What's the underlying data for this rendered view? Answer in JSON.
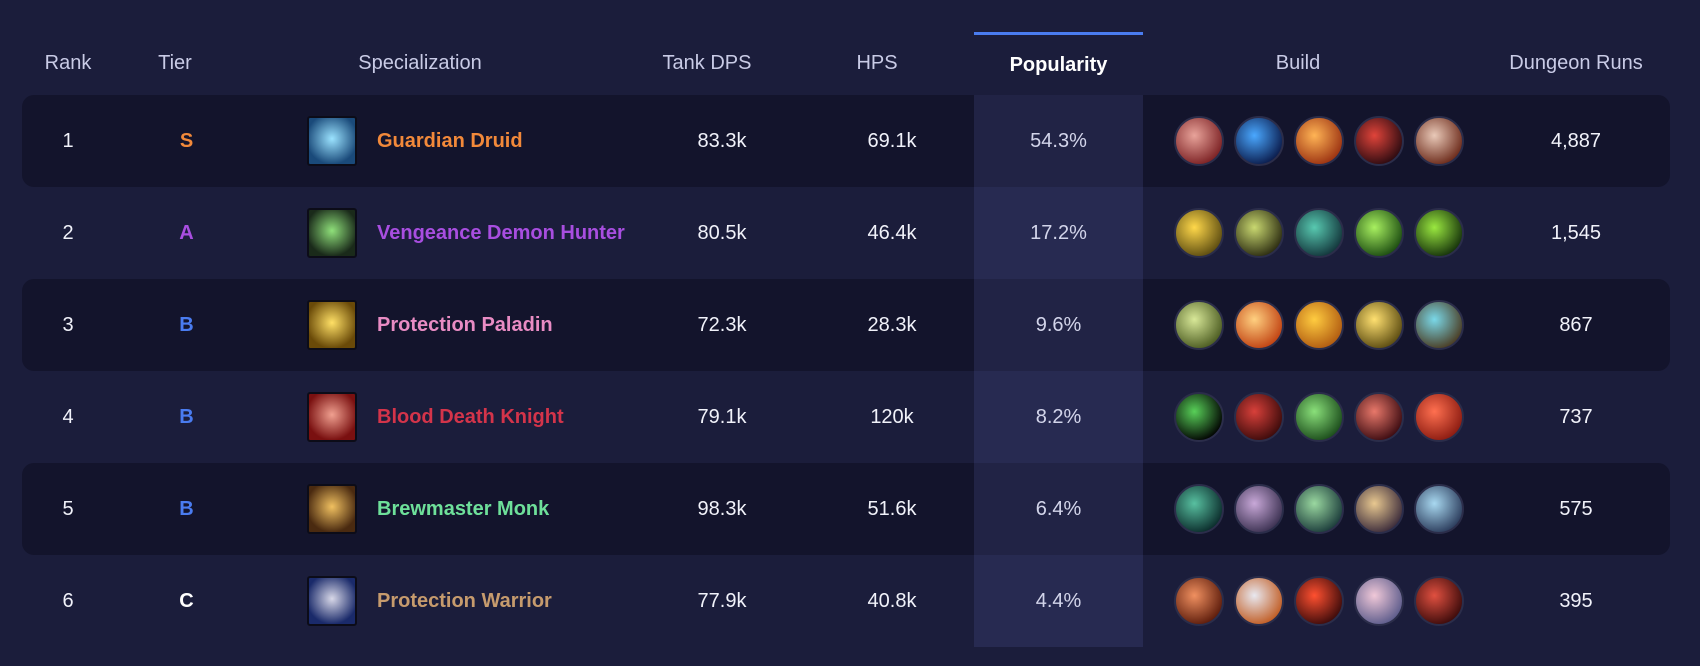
{
  "headers": {
    "rank": "Rank",
    "tier": "Tier",
    "specialization": "Specialization",
    "tank_dps": "Tank DPS",
    "hps": "HPS",
    "popularity": "Popularity",
    "build": "Build",
    "dungeon_runs": "Dungeon Runs"
  },
  "rows": [
    {
      "rank": "1",
      "tier": "S",
      "tier_color": "#f2893a",
      "spec": "Guardian Druid",
      "spec_color": "#f2893a",
      "spec_icon": "guardian-druid-icon",
      "spec_icon_colors": [
        "#9be3ff",
        "#1a4a7a"
      ],
      "tank_dps": "83.3k",
      "hps": "69.1k",
      "popularity": "54.3%",
      "runs": "4,887",
      "talents": [
        {
          "icon": "talent-bloody-claws-icon",
          "colors": [
            "#e8a39a",
            "#7a1f22"
          ]
        },
        {
          "icon": "talent-blue-swirl-icon",
          "colors": [
            "#4aa8ff",
            "#0a1a4a"
          ]
        },
        {
          "icon": "talent-fire-bear-icon",
          "colors": [
            "#ffb455",
            "#9a3010"
          ]
        },
        {
          "icon": "talent-red-beast-icon",
          "colors": [
            "#e0443a",
            "#2a0a10"
          ]
        },
        {
          "icon": "talent-claw-icon",
          "colors": [
            "#e9c9b8",
            "#6a2818"
          ]
        }
      ]
    },
    {
      "rank": "2",
      "tier": "A",
      "tier_color": "#a84ee0",
      "spec": "Vengeance Demon Hunter",
      "spec_color": "#a84ee0",
      "spec_icon": "vengeance-demon-hunter-icon",
      "spec_icon_colors": [
        "#8fe07a",
        "#1a2a1a"
      ],
      "tank_dps": "80.5k",
      "hps": "46.4k",
      "popularity": "17.2%",
      "runs": "1,545",
      "talents": [
        {
          "icon": "talent-yellow-glyph-icon",
          "colors": [
            "#ffd84a",
            "#5a4a10"
          ]
        },
        {
          "icon": "talent-demon-face-icon",
          "colors": [
            "#c9d870",
            "#2a2a10"
          ]
        },
        {
          "icon": "talent-teal-spirit-icon",
          "colors": [
            "#58c9b0",
            "#12343a"
          ]
        },
        {
          "icon": "talent-green-sigil-icon",
          "colors": [
            "#a8f060",
            "#1a4a10"
          ]
        },
        {
          "icon": "talent-fel-demon-icon",
          "colors": [
            "#9ae840",
            "#14300a"
          ]
        }
      ]
    },
    {
      "rank": "3",
      "tier": "B",
      "tier_color": "#4a7cf0",
      "spec": "Protection Paladin",
      "spec_color": "#e98cc4",
      "spec_icon": "protection-paladin-icon",
      "spec_icon_colors": [
        "#ffe066",
        "#6a4a08"
      ],
      "tank_dps": "72.3k",
      "hps": "28.3k",
      "popularity": "9.6%",
      "runs": "867",
      "talents": [
        {
          "icon": "talent-lion-face-icon",
          "colors": [
            "#d8e898",
            "#4a5a20"
          ]
        },
        {
          "icon": "talent-holy-flame-icon",
          "colors": [
            "#ffd080",
            "#c04010"
          ]
        },
        {
          "icon": "talent-holy-light-icon",
          "colors": [
            "#ffcc40",
            "#b05a10"
          ]
        },
        {
          "icon": "talent-golden-helm-icon",
          "colors": [
            "#ffe070",
            "#5a4a10"
          ]
        },
        {
          "icon": "talent-arcane-shield-icon",
          "colors": [
            "#7ad8e8",
            "#4a3a20"
          ]
        }
      ]
    },
    {
      "rank": "4",
      "tier": "B",
      "tier_color": "#4a7cf0",
      "spec": "Blood Death Knight",
      "spec_color": "#d4344a",
      "spec_icon": "blood-death-knight-icon",
      "spec_icon_colors": [
        "#f0a090",
        "#7a1010"
      ],
      "tank_dps": "79.1k",
      "hps": "120k",
      "popularity": "8.2%",
      "runs": "737",
      "talents": [
        {
          "icon": "talent-void-portal-icon",
          "colors": [
            "#58d058",
            "#000000"
          ]
        },
        {
          "icon": "talent-blood-swirl-icon",
          "colors": [
            "#d8403a",
            "#3a0a0a"
          ]
        },
        {
          "icon": "talent-green-skull-icon",
          "colors": [
            "#8ae07a",
            "#1a4a1a"
          ]
        },
        {
          "icon": "talent-blood-blade-icon",
          "colors": [
            "#e8786a",
            "#3a0a10"
          ]
        },
        {
          "icon": "talent-heart-icon",
          "colors": [
            "#ff7050",
            "#8a1a10"
          ]
        }
      ]
    },
    {
      "rank": "5",
      "tier": "B",
      "tier_color": "#4a7cf0",
      "spec": "Brewmaster Monk",
      "spec_color": "#6ee09a",
      "spec_icon": "brewmaster-monk-icon",
      "spec_icon_colors": [
        "#f0c060",
        "#4a2a10"
      ],
      "tank_dps": "98.3k",
      "hps": "51.6k",
      "popularity": "6.4%",
      "runs": "575",
      "talents": [
        {
          "icon": "talent-jade-swirl-icon",
          "colors": [
            "#58c0a0",
            "#0a2a2a"
          ]
        },
        {
          "icon": "talent-staff-strike-icon",
          "colors": [
            "#c8a8d8",
            "#3a3050"
          ]
        },
        {
          "icon": "talent-jade-fist-icon",
          "colors": [
            "#9ad8a0",
            "#1a3a3a"
          ]
        },
        {
          "icon": "talent-keg-icon",
          "colors": [
            "#e8c890",
            "#3a2a3a"
          ]
        },
        {
          "icon": "talent-storm-icon",
          "colors": [
            "#a8d8f0",
            "#2a3a5a"
          ]
        }
      ]
    },
    {
      "rank": "6",
      "tier": "C",
      "tier_color": "#ffffff",
      "spec": "Protection Warrior",
      "spec_color": "#c69b6d",
      "spec_icon": "protection-warrior-icon",
      "spec_icon_colors": [
        "#d8d8e8",
        "#1a2a6a"
      ],
      "tank_dps": "77.9k",
      "hps": "40.8k",
      "popularity": "4.4%",
      "runs": "395",
      "talents": [
        {
          "icon": "talent-enraged-warrior-icon",
          "colors": [
            "#f09060",
            "#5a1a0a"
          ]
        },
        {
          "icon": "talent-shield-icon",
          "colors": [
            "#e8e8f0",
            "#c05a20"
          ]
        },
        {
          "icon": "talent-red-shout-icon",
          "colors": [
            "#ff5030",
            "#3a0a0a"
          ]
        },
        {
          "icon": "talent-scream-icon",
          "colors": [
            "#f0c8d8",
            "#5a5a8a"
          ]
        },
        {
          "icon": "talent-avatar-icon",
          "colors": [
            "#e05040",
            "#3a0a0a"
          ]
        }
      ]
    }
  ]
}
